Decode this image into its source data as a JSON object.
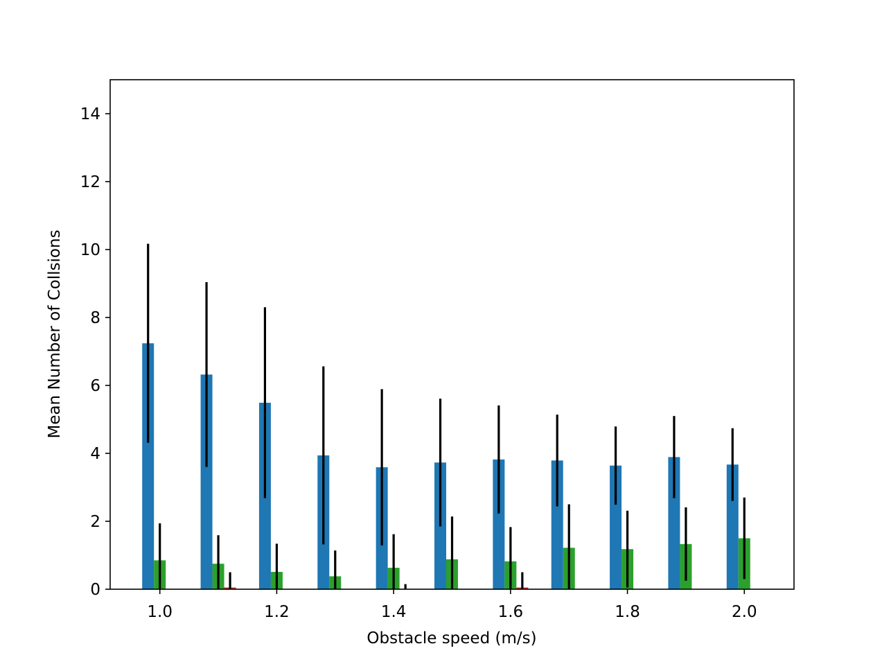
{
  "chart_data": {
    "type": "bar",
    "xlabel": "Obstacle speed (m/s)",
    "ylabel": "Mean Number of Collsions",
    "xlim": [
      0.915,
      2.085
    ],
    "ylim": [
      0,
      15
    ],
    "x_ticks": [
      "1.0",
      "1.2",
      "1.4",
      "1.6",
      "1.8",
      "2.0"
    ],
    "y_ticks": [
      "0",
      "2",
      "4",
      "6",
      "8",
      "10",
      "12",
      "14"
    ],
    "x": [
      1.0,
      1.1,
      1.2,
      1.3,
      1.4,
      1.5,
      1.6,
      1.7,
      1.8,
      1.9,
      2.0
    ],
    "grid": false,
    "series": [
      {
        "color": "#1f77b4",
        "values": [
          7.24,
          6.32,
          5.49,
          3.94,
          3.59,
          3.73,
          3.82,
          3.79,
          3.64,
          3.89,
          3.67
        ],
        "errors": [
          2.93,
          2.72,
          2.81,
          2.62,
          2.3,
          1.88,
          1.59,
          1.35,
          1.15,
          1.21,
          1.07
        ]
      },
      {
        "color": "#2ca02c",
        "values": [
          0.85,
          0.75,
          0.51,
          0.38,
          0.63,
          0.88,
          0.82,
          1.22,
          1.18,
          1.33,
          1.5
        ],
        "errors": [
          1.09,
          0.84,
          0.83,
          0.76,
          0.99,
          1.26,
          1.01,
          1.28,
          1.13,
          1.08,
          1.2
        ]
      },
      {
        "color": "#d62728",
        "values": [
          0.0,
          0.05,
          0.0,
          0.0,
          0.0,
          0.0,
          0.05,
          0.0,
          0.0,
          0.0,
          0.0
        ],
        "errors": [
          0.0,
          0.45,
          0.0,
          0.0,
          0.15,
          0.0,
          0.45,
          0.0,
          0.0,
          0.0,
          0.0
        ]
      }
    ]
  }
}
